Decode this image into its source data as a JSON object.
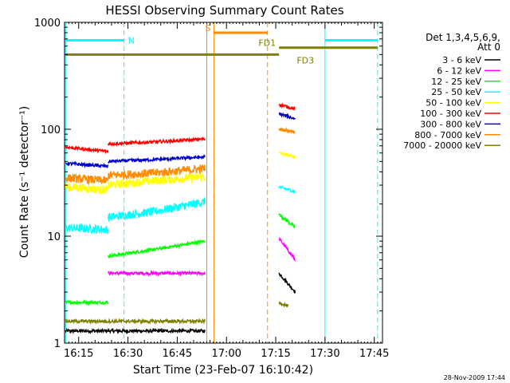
{
  "chart_data": {
    "type": "line",
    "title": "HESSI Observing Summary Count Rates",
    "xlabel": "Start Time (23-Feb-07 16:10:42)",
    "ylabel": "Count Rate (s⁻¹ detector⁻¹)",
    "x_tick_labels": [
      "16:15",
      "16:30",
      "16:45",
      "17:00",
      "17:15",
      "17:30",
      "17:45"
    ],
    "x_ticks_min": [
      15,
      30,
      45,
      60,
      75,
      90,
      105
    ],
    "xlim_min": [
      10.7,
      107.5
    ],
    "y_scale": "log",
    "ylim": [
      1,
      1000
    ],
    "y_tick_labels": [
      "1",
      "10",
      "100",
      "1000"
    ],
    "y_ticks": [
      1,
      10,
      100,
      1000
    ],
    "legend": {
      "header_line1": "Det 1,3,4,5,6,9,",
      "header_line2": "Att 0",
      "placement": "right"
    },
    "series": [
      {
        "name": "3 - 6 keV",
        "color": "#000000",
        "segments": [
          {
            "x": [
              11,
              24,
              24,
              38,
              38,
              53.5
            ],
            "y": [
              1.3,
              1.3,
              1.3,
              1.3,
              1.3,
              1.3
            ],
            "noise": "low"
          },
          {
            "x": [
              76,
              81
            ],
            "y": [
              4.5,
              3.0
            ],
            "noise": "low"
          }
        ]
      },
      {
        "name": "6 - 12 keV",
        "color": "#ff00ff",
        "segments": [
          {
            "x": [
              24,
              53.5
            ],
            "y": [
              4.5,
              4.5
            ],
            "noise": "low"
          },
          {
            "x": [
              76,
              81
            ],
            "y": [
              9.5,
              6.0
            ],
            "noise": "low"
          }
        ]
      },
      {
        "name": "12 - 25 keV",
        "color": "#00ff00",
        "segments": [
          {
            "x": [
              11,
              24
            ],
            "y": [
              2.4,
              2.4
            ],
            "noise": "low"
          },
          {
            "x": [
              24,
              38,
              53.5
            ],
            "y": [
              6.5,
              7.5,
              9.0
            ],
            "noise": "low"
          },
          {
            "x": [
              76,
              81
            ],
            "y": [
              16,
              12
            ],
            "noise": "low"
          }
        ]
      },
      {
        "name": "25 - 50 keV",
        "color": "#00ffff",
        "segments": [
          {
            "x": [
              11,
              24
            ],
            "y": [
              12,
              11.5
            ],
            "noise": "mid"
          },
          {
            "x": [
              24,
              38,
              53.5
            ],
            "y": [
              15,
              17,
              21
            ],
            "noise": "mid"
          },
          {
            "x": [
              76,
              81
            ],
            "y": [
              29,
              26
            ],
            "noise": "low"
          }
        ]
      },
      {
        "name": "50 - 100 keV",
        "color": "#ffff00",
        "segments": [
          {
            "x": [
              11,
              24
            ],
            "y": [
              29,
              27
            ],
            "noise": "mid"
          },
          {
            "x": [
              24,
              38,
              53.5
            ],
            "y": [
              30,
              33,
              36
            ],
            "noise": "mid"
          },
          {
            "x": [
              76,
              81
            ],
            "y": [
              60,
              55
            ],
            "noise": "low"
          }
        ]
      },
      {
        "name": "100 - 300 keV",
        "color": "#ff0000",
        "segments": [
          {
            "x": [
              11,
              24
            ],
            "y": [
              68,
              62
            ],
            "noise": "low"
          },
          {
            "x": [
              24,
              38,
              53.5
            ],
            "y": [
              73,
              76,
              81
            ],
            "noise": "low"
          },
          {
            "x": [
              76,
              81
            ],
            "y": [
              170,
              155
            ],
            "noise": "low"
          }
        ]
      },
      {
        "name": "300 - 800 keV",
        "color": "#0000cc",
        "segments": [
          {
            "x": [
              11,
              24
            ],
            "y": [
              48,
              45
            ],
            "noise": "low"
          },
          {
            "x": [
              24,
              38,
              53.5
            ],
            "y": [
              50,
              52,
              55
            ],
            "noise": "low"
          },
          {
            "x": [
              76,
              81
            ],
            "y": [
              140,
              125
            ],
            "noise": "low"
          }
        ]
      },
      {
        "name": "800 - 7000 keV",
        "color": "#ff8c00",
        "segments": [
          {
            "x": [
              11,
              24
            ],
            "y": [
              35,
              33
            ],
            "noise": "mid"
          },
          {
            "x": [
              24,
              38,
              53.5
            ],
            "y": [
              37,
              39,
              43
            ],
            "noise": "mid"
          },
          {
            "x": [
              76,
              81
            ],
            "y": [
              100,
              95
            ],
            "noise": "low"
          }
        ]
      },
      {
        "name": "7000 - 20000 keV",
        "color": "#808000",
        "segments": [
          {
            "x": [
              11,
              53.5
            ],
            "y": [
              1.6,
              1.6
            ],
            "noise": "low"
          },
          {
            "x": [
              76,
              79
            ],
            "y": [
              2.4,
              2.2
            ],
            "noise": "low"
          }
        ]
      }
    ],
    "flags": [
      {
        "label": "N",
        "color": "#00ffff",
        "x_start": 11,
        "x_end": 28.8,
        "y": 680
      },
      {
        "label": "",
        "color": "#00ffff",
        "x_start": 90,
        "x_end": 106,
        "y": 680
      },
      {
        "label": "S",
        "color": "#ff8c00",
        "x_start": 56.2,
        "x_end": 72.5,
        "y": 800
      },
      {
        "label": "FD1",
        "color": "#808000",
        "x_start": 76,
        "x_end": 106,
        "y": 580
      },
      {
        "label": "FD3",
        "color": "#808000",
        "x_start": 11,
        "x_end": 76,
        "y": 500
      }
    ],
    "vlines": [
      {
        "x": 11,
        "color": "#00ffff",
        "style": "solid"
      },
      {
        "x": 28.8,
        "color": "#00ffff",
        "style": "dashed"
      },
      {
        "x": 54,
        "color": "#ff8c00",
        "style": "solid"
      },
      {
        "x": 56.2,
        "color": "#ff8c00",
        "style": "solid"
      },
      {
        "x": 72.5,
        "color": "#ff8c00",
        "style": "dashed"
      },
      {
        "x": 90,
        "color": "#00ffff",
        "style": "solid"
      },
      {
        "x": 106,
        "color": "#00ffff",
        "style": "dashed"
      }
    ],
    "footer_date": "28-Nov-2009 17:44"
  }
}
